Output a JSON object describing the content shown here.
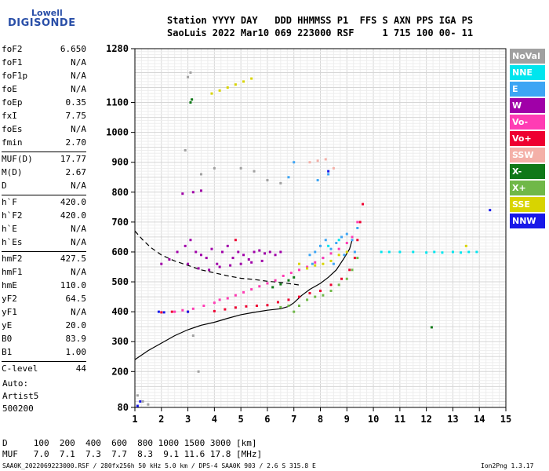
{
  "logo": {
    "line1": "Lowell",
    "line2": "DIGISONDE"
  },
  "header": {
    "line1": "Station YYYY DAY   DDD HHMMSS P1  FFS S AXN PPS IGA PS",
    "line2": "SaoLuis 2022 Mar10 069 223000 RSF     1 715 100 00- 11"
  },
  "params": [
    {
      "name": "foF2",
      "value": "6.650"
    },
    {
      "name": "foF1",
      "value": "N/A"
    },
    {
      "name": "foF1p",
      "value": "N/A"
    },
    {
      "name": "foE",
      "value": "N/A"
    },
    {
      "name": "foEp",
      "value": "0.35"
    },
    {
      "name": "fxI",
      "value": "7.75"
    },
    {
      "name": "foEs",
      "value": "N/A"
    },
    {
      "name": "fmin",
      "value": "2.70"
    },
    {
      "name": "MUF(D)",
      "value": "17.77",
      "sep": true
    },
    {
      "name": "M(D)",
      "value": "2.67"
    },
    {
      "name": "D",
      "value": "N/A"
    },
    {
      "name": "h`F",
      "value": "420.0",
      "sep": true
    },
    {
      "name": "h`F2",
      "value": "420.0"
    },
    {
      "name": "h`E",
      "value": "N/A"
    },
    {
      "name": "h`Es",
      "value": "N/A"
    },
    {
      "name": "hmF2",
      "value": "427.5",
      "sep": true
    },
    {
      "name": "hmF1",
      "value": "N/A"
    },
    {
      "name": "hmE",
      "value": "110.0"
    },
    {
      "name": "yF2",
      "value": "64.5"
    },
    {
      "name": "yF1",
      "value": "N/A"
    },
    {
      "name": "yE",
      "value": "20.0"
    },
    {
      "name": "B0",
      "value": "83.9"
    },
    {
      "name": "B1",
      "value": "1.00"
    },
    {
      "name": "C-level",
      "value": "44",
      "sep": true
    }
  ],
  "auto": {
    "line1": "Auto:",
    "line2": "Artist5",
    "line3": "500200"
  },
  "dtable": {
    "line1": "D     100  200  400  600  800 1000 1500 3000 [km]",
    "line2": "MUF   7.0  7.1  7.3  7.7  8.3  9.1 11.6 17.8 [MHz]"
  },
  "footer": {
    "left": "SAA0K_2022069223000.RSF / 280fx256h 50 kHz 5.0 km / DPS-4 SAA0K 903 / 2.6 S 315.8 E",
    "right": "Ion2Png 1.3.17"
  },
  "legend": [
    {
      "label": "NoVal",
      "color": "#a0a0a0"
    },
    {
      "label": "NNE",
      "color": "#00e5ee"
    },
    {
      "label": "E",
      "color": "#3da5f4"
    },
    {
      "label": "W",
      "color": "#a000a8"
    },
    {
      "label": "Vo-",
      "color": "#ff3cb4"
    },
    {
      "label": "Vo+",
      "color": "#ee0030"
    },
    {
      "label": "SSW",
      "color": "#f4b0a8"
    },
    {
      "label": "X-",
      "color": "#107818"
    },
    {
      "label": "X+",
      "color": "#70b848"
    },
    {
      "label": "SSE",
      "color": "#d8d400"
    },
    {
      "label": "NNW",
      "color": "#1818e8"
    }
  ],
  "chart_data": {
    "type": "scatter",
    "xlim": [
      1,
      15
    ],
    "ylim": [
      80,
      1280
    ],
    "x_ticks": [
      1,
      2,
      3,
      4,
      5,
      6,
      7,
      8,
      9,
      10,
      11,
      12,
      13,
      14,
      15
    ],
    "y_ticks": [
      80,
      200,
      300,
      400,
      500,
      600,
      700,
      800,
      900,
      1000,
      1100,
      1280
    ],
    "grid": true,
    "series": [
      {
        "name": "W",
        "color": "#a000a8",
        "points": [
          [
            2.0,
            560
          ],
          [
            2.3,
            575
          ],
          [
            2.6,
            600
          ],
          [
            2.9,
            620
          ],
          [
            3.1,
            640
          ],
          [
            3.3,
            600
          ],
          [
            3.5,
            590
          ],
          [
            3.7,
            580
          ],
          [
            3.9,
            610
          ],
          [
            4.1,
            560
          ],
          [
            4.3,
            600
          ],
          [
            4.5,
            620
          ],
          [
            4.7,
            580
          ],
          [
            4.9,
            600
          ],
          [
            5.1,
            590
          ],
          [
            5.3,
            575
          ],
          [
            5.5,
            600
          ],
          [
            5.7,
            605
          ],
          [
            5.9,
            595
          ],
          [
            6.1,
            600
          ],
          [
            6.3,
            590
          ],
          [
            6.5,
            600
          ],
          [
            3.0,
            560
          ],
          [
            3.4,
            545
          ],
          [
            3.8,
            540
          ],
          [
            4.2,
            550
          ],
          [
            4.6,
            555
          ],
          [
            5.0,
            560
          ],
          [
            5.4,
            565
          ],
          [
            5.8,
            570
          ],
          [
            3.2,
            800
          ],
          [
            3.5,
            805
          ],
          [
            2.8,
            795
          ]
        ]
      },
      {
        "name": "E",
        "color": "#3da5f4",
        "points": [
          [
            7.6,
            590
          ],
          [
            7.8,
            600
          ],
          [
            8.0,
            620
          ],
          [
            8.2,
            640
          ],
          [
            8.4,
            610
          ],
          [
            8.6,
            630
          ],
          [
            8.8,
            650
          ],
          [
            9.0,
            660
          ],
          [
            9.2,
            640
          ],
          [
            9.4,
            680
          ],
          [
            7.7,
            560
          ],
          [
            8.1,
            580
          ],
          [
            8.5,
            560
          ],
          [
            8.9,
            590
          ],
          [
            9.3,
            600
          ],
          [
            7.9,
            840
          ],
          [
            8.3,
            860
          ],
          [
            7.0,
            900
          ],
          [
            6.8,
            850
          ]
        ]
      },
      {
        "name": "NNE",
        "color": "#00e5ee",
        "points": [
          [
            10.3,
            600
          ],
          [
            10.6,
            600
          ],
          [
            11.0,
            600
          ],
          [
            11.5,
            600
          ],
          [
            12.0,
            598
          ],
          [
            12.3,
            600
          ],
          [
            12.6,
            598
          ],
          [
            13.0,
            600
          ],
          [
            13.3,
            598
          ],
          [
            13.6,
            600
          ],
          [
            13.9,
            600
          ],
          [
            8.3,
            620
          ],
          [
            8.7,
            640
          ]
        ]
      },
      {
        "name": "Vo-",
        "color": "#ff3cb4",
        "points": [
          [
            4.2,
            440
          ],
          [
            4.5,
            445
          ],
          [
            4.8,
            455
          ],
          [
            5.1,
            465
          ],
          [
            5.4,
            475
          ],
          [
            5.7,
            485
          ],
          [
            6.0,
            495
          ],
          [
            6.3,
            505
          ],
          [
            6.6,
            520
          ],
          [
            6.9,
            530
          ],
          [
            7.2,
            540
          ],
          [
            7.5,
            550
          ],
          [
            7.8,
            565
          ],
          [
            8.1,
            580
          ],
          [
            8.4,
            595
          ],
          [
            8.7,
            610
          ],
          [
            9.0,
            630
          ],
          [
            9.2,
            650
          ],
          [
            9.4,
            700
          ],
          [
            2.5,
            400
          ],
          [
            2.8,
            405
          ],
          [
            3.2,
            410
          ],
          [
            3.6,
            420
          ],
          [
            4.0,
            430
          ]
        ]
      },
      {
        "name": "Vo+",
        "color": "#ee0030",
        "points": [
          [
            4.0,
            402
          ],
          [
            4.4,
            408
          ],
          [
            4.8,
            414
          ],
          [
            5.2,
            418
          ],
          [
            5.6,
            420
          ],
          [
            6.0,
            422
          ],
          [
            6.4,
            432
          ],
          [
            6.8,
            440
          ],
          [
            7.2,
            450
          ],
          [
            7.6,
            462
          ],
          [
            8.0,
            470
          ],
          [
            8.4,
            490
          ],
          [
            8.8,
            510
          ],
          [
            9.1,
            540
          ],
          [
            9.3,
            580
          ],
          [
            9.4,
            640
          ],
          [
            9.5,
            700
          ],
          [
            9.6,
            760
          ],
          [
            4.8,
            640
          ],
          [
            2.0,
            398
          ],
          [
            2.4,
            400
          ],
          [
            3.0,
            400
          ]
        ]
      },
      {
        "name": "X+",
        "color": "#70b848",
        "points": [
          [
            7.0,
            400
          ],
          [
            7.2,
            420
          ],
          [
            7.5,
            440
          ],
          [
            7.8,
            450
          ],
          [
            8.1,
            455
          ],
          [
            8.4,
            470
          ],
          [
            8.7,
            490
          ],
          [
            9.0,
            510
          ],
          [
            9.2,
            540
          ],
          [
            9.4,
            580
          ],
          [
            6.8,
            420
          ],
          [
            6.5,
            415
          ]
        ]
      },
      {
        "name": "X-",
        "color": "#107818",
        "points": [
          [
            6.2,
            482
          ],
          [
            6.5,
            492
          ],
          [
            6.8,
            505
          ],
          [
            7.0,
            515
          ],
          [
            3.1,
            1100
          ],
          [
            3.15,
            1110
          ],
          [
            12.2,
            348
          ]
        ]
      },
      {
        "name": "SSE",
        "color": "#d8d400",
        "points": [
          [
            3.9,
            1130
          ],
          [
            4.2,
            1140
          ],
          [
            4.5,
            1150
          ],
          [
            4.8,
            1160
          ],
          [
            5.1,
            1170
          ],
          [
            5.4,
            1180
          ],
          [
            7.2,
            560
          ],
          [
            7.5,
            545
          ],
          [
            7.8,
            555
          ],
          [
            8.1,
            560
          ],
          [
            8.4,
            570
          ],
          [
            8.7,
            590
          ],
          [
            9.0,
            600
          ],
          [
            13.5,
            620
          ]
        ]
      },
      {
        "name": "SSW",
        "color": "#f4b0a8",
        "points": [
          [
            7.6,
            900
          ],
          [
            7.9,
            905
          ],
          [
            8.2,
            910
          ],
          [
            8.5,
            880
          ]
        ]
      },
      {
        "name": "NNW",
        "color": "#1818e8",
        "points": [
          [
            1.9,
            400
          ],
          [
            2.1,
            398
          ],
          [
            3.0,
            400
          ],
          [
            1.1,
            85
          ],
          [
            1.2,
            100
          ],
          [
            8.3,
            870
          ],
          [
            14.4,
            740
          ]
        ]
      },
      {
        "name": "NoVal",
        "color": "#a0a0a0",
        "points": [
          [
            1.1,
            120
          ],
          [
            1.3,
            100
          ],
          [
            1.5,
            90
          ],
          [
            3.0,
            1185
          ],
          [
            3.1,
            1200
          ],
          [
            2.9,
            940
          ],
          [
            3.5,
            860
          ],
          [
            4.0,
            880
          ],
          [
            5.0,
            880
          ],
          [
            5.5,
            870
          ],
          [
            6.0,
            840
          ],
          [
            6.5,
            830
          ],
          [
            3.2,
            320
          ],
          [
            3.4,
            200
          ]
        ]
      }
    ],
    "lines": [
      {
        "style": "solid",
        "points": [
          [
            1,
            240
          ],
          [
            1.5,
            270
          ],
          [
            2,
            295
          ],
          [
            2.5,
            320
          ],
          [
            3,
            340
          ],
          [
            3.5,
            355
          ],
          [
            4,
            365
          ],
          [
            4.5,
            378
          ],
          [
            5,
            390
          ],
          [
            5.5,
            398
          ],
          [
            6,
            405
          ],
          [
            6.5,
            410
          ],
          [
            6.8,
            418
          ],
          [
            7,
            430
          ],
          [
            7.3,
            455
          ],
          [
            7.6,
            475
          ],
          [
            8,
            495
          ],
          [
            8.3,
            515
          ],
          [
            8.6,
            540
          ],
          [
            8.9,
            580
          ],
          [
            9.1,
            610
          ],
          [
            9.2,
            640
          ]
        ]
      },
      {
        "style": "dashed",
        "points": [
          [
            1,
            670
          ],
          [
            1.3,
            640
          ],
          [
            1.6,
            615
          ],
          [
            2,
            590
          ],
          [
            2.5,
            570
          ],
          [
            3,
            555
          ],
          [
            3.5,
            540
          ],
          [
            4,
            530
          ],
          [
            4.5,
            520
          ],
          [
            5,
            512
          ],
          [
            5.5,
            508
          ],
          [
            6,
            502
          ],
          [
            6.5,
            498
          ],
          [
            7,
            492
          ],
          [
            7.3,
            488
          ]
        ]
      }
    ]
  }
}
